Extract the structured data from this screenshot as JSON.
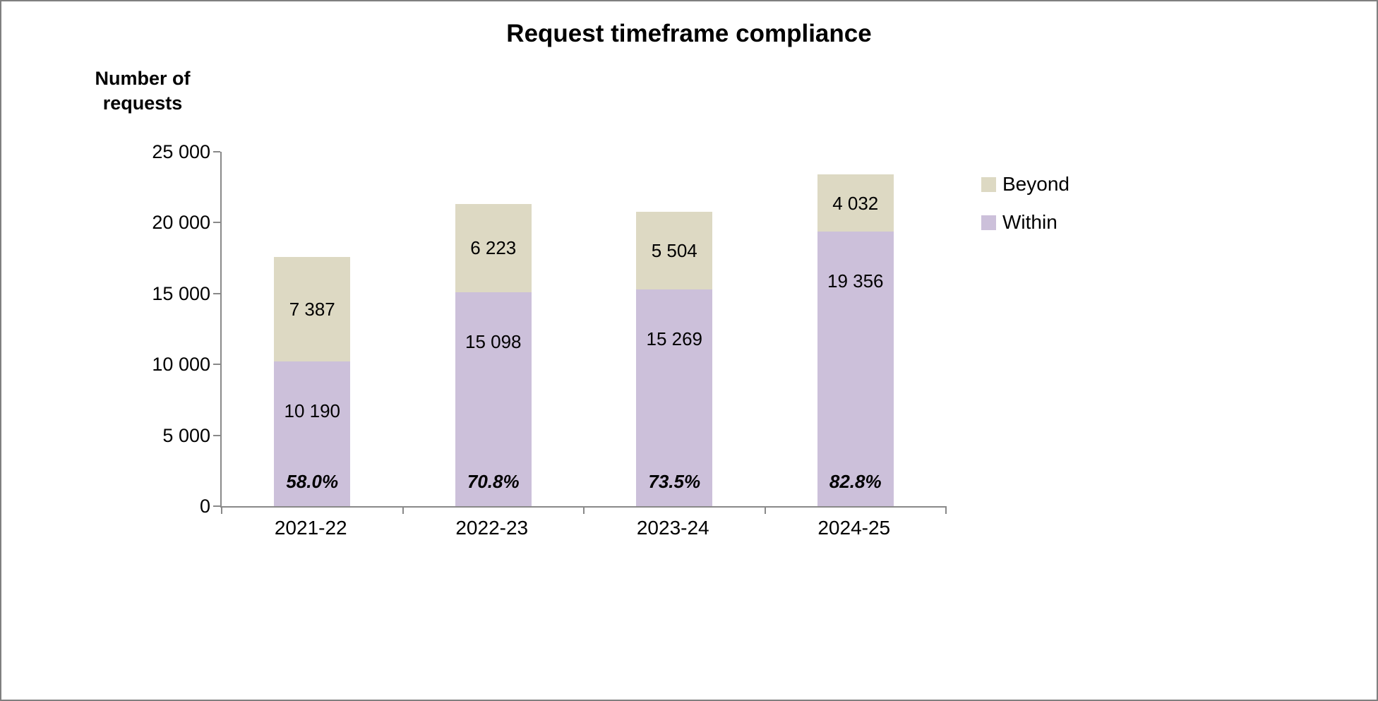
{
  "chart_data": {
    "type": "bar",
    "stacked": true,
    "title": "Request timeframe compliance",
    "ylabel": "Number of\nrequests",
    "xlabel": "",
    "categories": [
      "2021-22",
      "2022-23",
      "2023-24",
      "2024-25"
    ],
    "series": [
      {
        "name": "Within",
        "color": "#CCC0DA",
        "values": [
          10190,
          15098,
          15269,
          19356
        ],
        "value_labels": [
          "10 190",
          "15 098",
          "15 269",
          "19 356"
        ]
      },
      {
        "name": "Beyond",
        "color": "#DDD9C3",
        "values": [
          7387,
          6223,
          5504,
          4032
        ],
        "value_labels": [
          "7 387",
          "6 223",
          "5 504",
          "4 032"
        ]
      }
    ],
    "percent_labels": [
      "58.0%",
      "70.8%",
      "73.5%",
      "82.8%"
    ],
    "ylim": [
      0,
      25000
    ],
    "y_ticks": [
      0,
      5000,
      10000,
      15000,
      20000,
      25000
    ],
    "y_tick_labels": [
      "0",
      "5 000",
      "10 000",
      "15 000",
      "20 000",
      "25 000"
    ],
    "legend": [
      "Beyond",
      "Within"
    ],
    "legend_position": "right",
    "grid": false,
    "axis_color": "#898989"
  }
}
